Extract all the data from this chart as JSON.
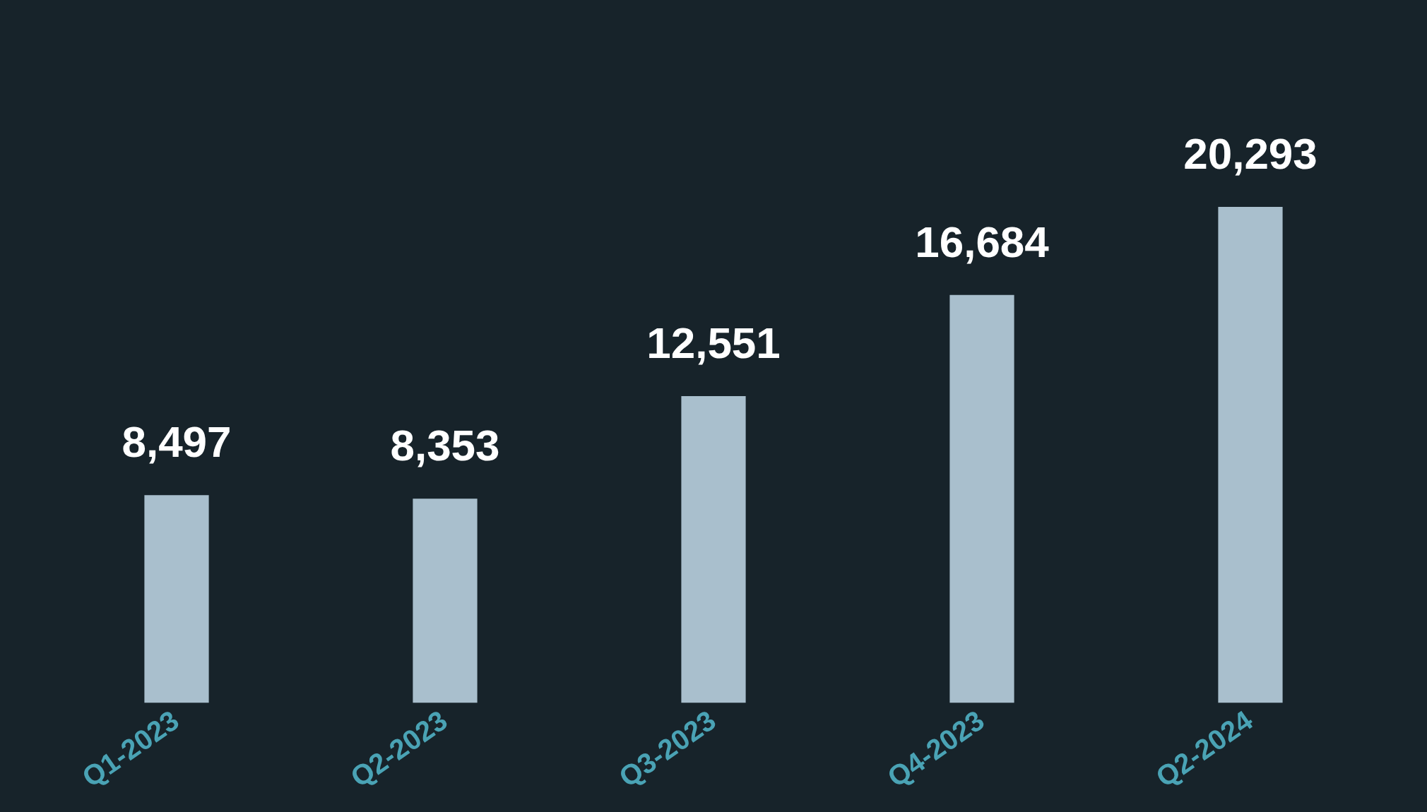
{
  "chart_data": {
    "type": "bar",
    "categories": [
      "Q1-2023",
      "Q2-2023",
      "Q3-2023",
      "Q4-2023",
      "Q2-2024"
    ],
    "values": [
      8497,
      8353,
      12551,
      16684,
      20293
    ],
    "value_labels": [
      "8,497",
      "8,353",
      "12,551",
      "16,684",
      "20,293"
    ],
    "color": "#a9bfcd"
  }
}
